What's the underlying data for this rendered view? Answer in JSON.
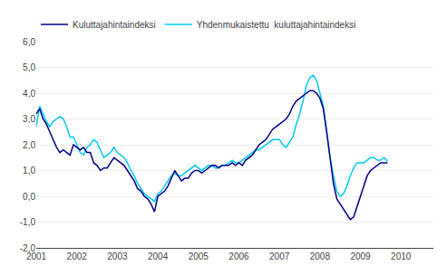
{
  "chart_data": {
    "type": "line",
    "x": [
      2001,
      2001.083333,
      2001.166667,
      2001.25,
      2001.333333,
      2001.416667,
      2001.5,
      2001.583333,
      2001.666667,
      2001.75,
      2001.833333,
      2001.916667,
      2002,
      2002.083333,
      2002.166667,
      2002.25,
      2002.333333,
      2002.416667,
      2002.5,
      2002.583333,
      2002.666667,
      2002.75,
      2002.833333,
      2002.916667,
      2003,
      2003.083333,
      2003.166667,
      2003.25,
      2003.333333,
      2003.416667,
      2003.5,
      2003.583333,
      2003.666667,
      2003.75,
      2003.833333,
      2003.916667,
      2004,
      2004.083333,
      2004.166667,
      2004.25,
      2004.333333,
      2004.416667,
      2004.5,
      2004.583333,
      2004.666667,
      2004.75,
      2004.833333,
      2004.916667,
      2005,
      2005.083333,
      2005.166667,
      2005.25,
      2005.333333,
      2005.416667,
      2005.5,
      2005.583333,
      2005.666667,
      2005.75,
      2005.833333,
      2005.916667,
      2006,
      2006.083333,
      2006.166667,
      2006.25,
      2006.333333,
      2006.416667,
      2006.5,
      2006.583333,
      2006.666667,
      2006.75,
      2006.833333,
      2006.916667,
      2007,
      2007.083333,
      2007.166667,
      2007.25,
      2007.333333,
      2007.416667,
      2007.5,
      2007.583333,
      2007.666667,
      2007.75,
      2007.833333,
      2007.916667,
      2008,
      2008.083333,
      2008.166667,
      2008.25,
      2008.333333,
      2008.416667,
      2008.5,
      2008.583333,
      2008.666667,
      2008.75,
      2008.833333,
      2008.916667,
      2009,
      2009.083333,
      2009.166667,
      2009.25,
      2009.333333,
      2009.416667,
      2009.5,
      2009.583333,
      2009.666667
    ],
    "series": [
      {
        "name": "Yhdenmukaistettu  kuluttajahintaindeksi",
        "color": "#00CCEE",
        "values": [
          2.7,
          3.5,
          3.2,
          2.9,
          2.7,
          2.9,
          3.0,
          3.1,
          3.0,
          2.7,
          2.3,
          2.3,
          2.0,
          1.7,
          1.6,
          1.9,
          2.0,
          2.2,
          2.1,
          1.8,
          1.5,
          1.6,
          1.7,
          1.9,
          1.7,
          1.6,
          1.5,
          1.3,
          1.0,
          0.8,
          0.5,
          0.3,
          0.1,
          0.0,
          -0.1,
          -0.2,
          0.1,
          0.2,
          0.4,
          0.6,
          0.8,
          0.9,
          0.8,
          0.8,
          0.9,
          1.0,
          1.1,
          1.2,
          1.1,
          1.0,
          1.1,
          1.2,
          1.2,
          1.1,
          1.1,
          1.2,
          1.2,
          1.3,
          1.4,
          1.3,
          1.3,
          1.4,
          1.5,
          1.6,
          1.7,
          1.8,
          1.8,
          1.9,
          2.0,
          2.1,
          2.2,
          2.2,
          2.2,
          2.0,
          1.9,
          2.1,
          2.3,
          2.8,
          3.2,
          3.7,
          4.3,
          4.6,
          4.7,
          4.5,
          4.0,
          3.5,
          2.5,
          1.5,
          0.8,
          0.2,
          0.0,
          0.1,
          0.4,
          0.8,
          1.1,
          1.3,
          1.3,
          1.3,
          1.4,
          1.5,
          1.5,
          1.4,
          1.4,
          1.5,
          1.35
        ]
      },
      {
        "name": "Kuluttajahintaindeksi",
        "color": "#00008B",
        "values": [
          3.2,
          3.4,
          3.0,
          2.8,
          2.5,
          2.2,
          1.9,
          1.7,
          1.8,
          1.7,
          1.6,
          2.0,
          1.9,
          1.8,
          1.9,
          1.7,
          1.7,
          1.3,
          1.2,
          1.0,
          1.1,
          1.1,
          1.3,
          1.5,
          1.4,
          1.3,
          1.2,
          1.0,
          0.8,
          0.6,
          0.3,
          0.2,
          0.0,
          -0.1,
          -0.3,
          -0.6,
          0.0,
          0.1,
          0.2,
          0.4,
          0.7,
          1.0,
          0.8,
          0.6,
          0.7,
          0.7,
          0.9,
          1.0,
          1.0,
          0.9,
          1.0,
          1.1,
          1.2,
          1.2,
          1.1,
          1.2,
          1.2,
          1.2,
          1.3,
          1.2,
          1.3,
          1.2,
          1.4,
          1.5,
          1.6,
          1.8,
          2.0,
          2.1,
          2.2,
          2.4,
          2.6,
          2.7,
          2.8,
          2.9,
          3.0,
          3.2,
          3.5,
          3.7,
          3.8,
          3.9,
          4.0,
          4.1,
          4.1,
          4.0,
          3.8,
          3.4,
          2.5,
          1.5,
          0.5,
          -0.1,
          -0.3,
          -0.5,
          -0.7,
          -0.9,
          -0.8,
          -0.4,
          0.0,
          0.4,
          0.8,
          1.0,
          1.1,
          1.2,
          1.3,
          1.3,
          1.3
        ]
      }
    ],
    "xlim": [
      2001,
      2010.8
    ],
    "xticks": [
      2001,
      2002,
      2003,
      2004,
      2005,
      2006,
      2007,
      2008,
      2009,
      2010
    ],
    "ylim": [
      -2.0,
      6.0
    ],
    "yticks": [
      {
        "value": -2.0,
        "label": "-2,0"
      },
      {
        "value": -1.0,
        "label": "-1,0"
      },
      {
        "value": 0.0,
        "label": "0,0"
      },
      {
        "value": 1.0,
        "label": "1,0"
      },
      {
        "value": 2.0,
        "label": "2,0"
      },
      {
        "value": 3.0,
        "label": "3,0"
      },
      {
        "value": 4.0,
        "label": "4,0"
      },
      {
        "value": 5.0,
        "label": "5,0"
      },
      {
        "value": 6.0,
        "label": "6,0"
      }
    ],
    "grid": true,
    "legend": "upper left"
  }
}
